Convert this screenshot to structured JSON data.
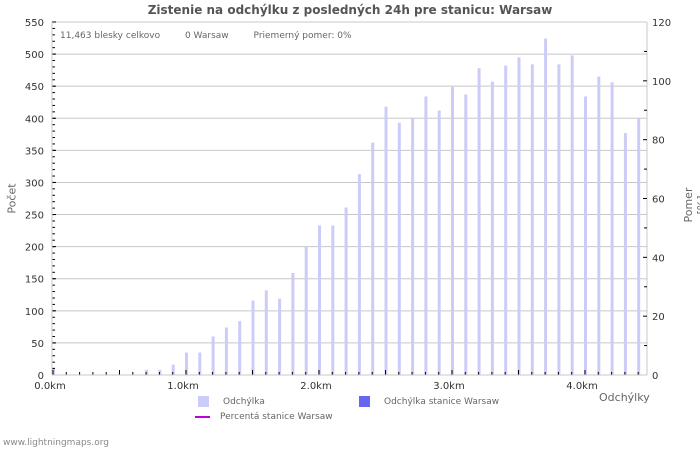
{
  "title": "Zistenie na odchýlku z posledných 24h pre stanicu: Warsaw",
  "stats": {
    "total": "11,463 blesky celkovo",
    "station": "0 Warsaw",
    "avg": "Priemerný pomer: 0%"
  },
  "axes": {
    "y_left_label": "Počet",
    "y_right_label": "Pomer [%]",
    "x_label": "Odchýlky"
  },
  "legend": {
    "items": [
      {
        "label": "Odchýlka",
        "color": "#ccccf8"
      },
      {
        "label": "Odchýlka stanice Warsaw",
        "color": "#6666ee"
      },
      {
        "label": "Percentá stanice Warsaw",
        "color": "#bb00dd"
      }
    ]
  },
  "footer": "www.lightningmaps.org",
  "colors": {
    "bar": "#ccccf8",
    "grid": "#c8c8c8",
    "axis_text": "#333333"
  },
  "chart_data": {
    "type": "bar",
    "title": "Zistenie na odchýlku z posledných 24h pre stanicu: Warsaw",
    "xlabel": "Odchýlky",
    "ylabel": "Počet",
    "y2label": "Pomer [%]",
    "ylim": [
      0,
      550
    ],
    "y2lim": [
      0,
      120
    ],
    "yticks": [
      0,
      50,
      100,
      150,
      200,
      250,
      300,
      350,
      400,
      450,
      500,
      550
    ],
    "y2ticks": [
      0,
      20,
      40,
      60,
      80,
      100,
      120
    ],
    "xticks": [
      "0.0km",
      "1.0km",
      "2.0km",
      "3.0km",
      "4.0km"
    ],
    "grid": true,
    "legend_position": "bottom",
    "categories": [
      "0.0",
      "0.1",
      "0.2",
      "0.3",
      "0.4",
      "0.5",
      "0.6",
      "0.7",
      "0.8",
      "0.9",
      "1.0",
      "1.1",
      "1.2",
      "1.3",
      "1.4",
      "1.5",
      "1.6",
      "1.7",
      "1.8",
      "1.9",
      "2.0",
      "2.1",
      "2.2",
      "2.3",
      "2.4",
      "2.5",
      "2.6",
      "2.7",
      "2.8",
      "2.9",
      "3.0",
      "3.1",
      "3.2",
      "3.3",
      "3.4",
      "3.5",
      "3.6",
      "3.7",
      "3.8",
      "3.9",
      "4.0",
      "4.1",
      "4.2",
      "4.3",
      "4.4"
    ],
    "series": [
      {
        "name": "Odchýlka",
        "values": [
          12,
          0,
          0,
          0,
          0,
          0,
          0,
          8,
          8,
          16,
          35,
          35,
          60,
          74,
          84,
          116,
          132,
          119,
          159,
          200,
          233,
          233,
          261,
          313,
          362,
          418,
          393,
          401,
          434,
          412,
          449,
          437,
          478,
          457,
          482,
          495,
          484,
          524,
          484,
          498,
          434,
          465,
          456,
          377,
          401
        ]
      },
      {
        "name": "Odchýlka stanice Warsaw",
        "values": [
          0,
          0,
          0,
          0,
          0,
          0,
          0,
          0,
          0,
          0,
          0,
          0,
          0,
          0,
          0,
          0,
          0,
          0,
          0,
          0,
          0,
          0,
          0,
          0,
          0,
          0,
          0,
          0,
          0,
          0,
          0,
          0,
          0,
          0,
          0,
          0,
          0,
          0,
          0,
          0,
          0,
          0,
          0,
          0,
          0
        ]
      },
      {
        "name": "Percentá stanice Warsaw",
        "values": [
          0,
          0,
          0,
          0,
          0,
          0,
          0,
          0,
          0,
          0,
          0,
          0,
          0,
          0,
          0,
          0,
          0,
          0,
          0,
          0,
          0,
          0,
          0,
          0,
          0,
          0,
          0,
          0,
          0,
          0,
          0,
          0,
          0,
          0,
          0,
          0,
          0,
          0,
          0,
          0,
          0,
          0,
          0,
          0,
          0
        ]
      }
    ]
  }
}
